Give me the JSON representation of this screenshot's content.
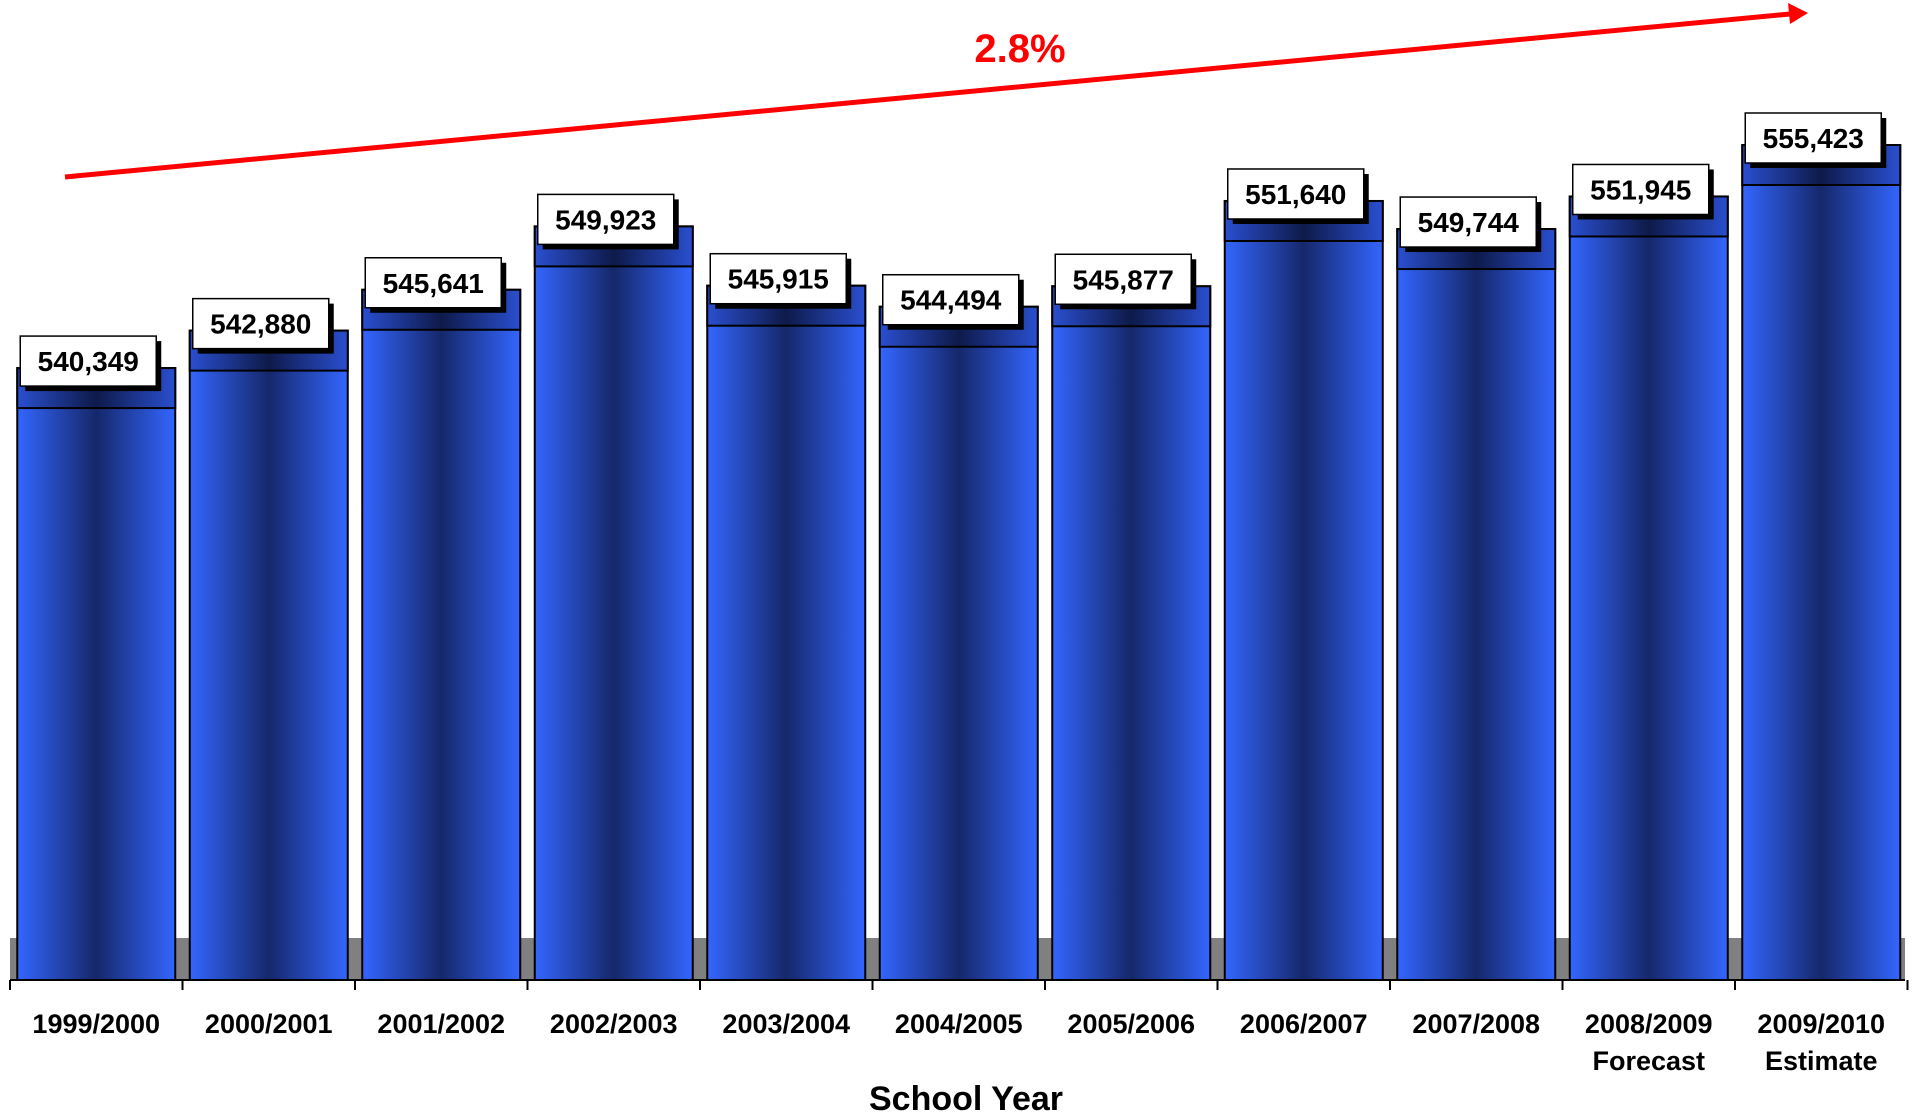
{
  "chart_data": {
    "type": "bar",
    "title": "",
    "xlabel": "School Year",
    "ylabel": "",
    "categories": [
      [
        "1999/2000"
      ],
      [
        "2000/2001"
      ],
      [
        "2001/2002"
      ],
      [
        "2002/2003"
      ],
      [
        "2003/2004"
      ],
      [
        "2004/2005"
      ],
      [
        "2005/2006"
      ],
      [
        "2006/2007"
      ],
      [
        "2007/2008"
      ],
      [
        "2008/2009",
        "Forecast"
      ],
      [
        "2009/2010",
        "Estimate"
      ]
    ],
    "values": [
      540349,
      542880,
      545641,
      549923,
      545915,
      544494,
      545877,
      551640,
      549744,
      551945,
      555423
    ],
    "value_labels": [
      "540,349",
      "542,880",
      "545,641",
      "549,923",
      "545,915",
      "544,494",
      "545,877",
      "551,640",
      "549,744",
      "551,945",
      "555,423"
    ],
    "ylim": [
      499000,
      555423
    ],
    "grid": false,
    "legend": "none",
    "trend_annotation": "2.8%",
    "colors": {
      "bar_light": "#3366ff",
      "bar_dark": "#16286b",
      "cap_light": "#2a4fd0",
      "trend": "#ff0000",
      "floor": "#808080"
    }
  }
}
